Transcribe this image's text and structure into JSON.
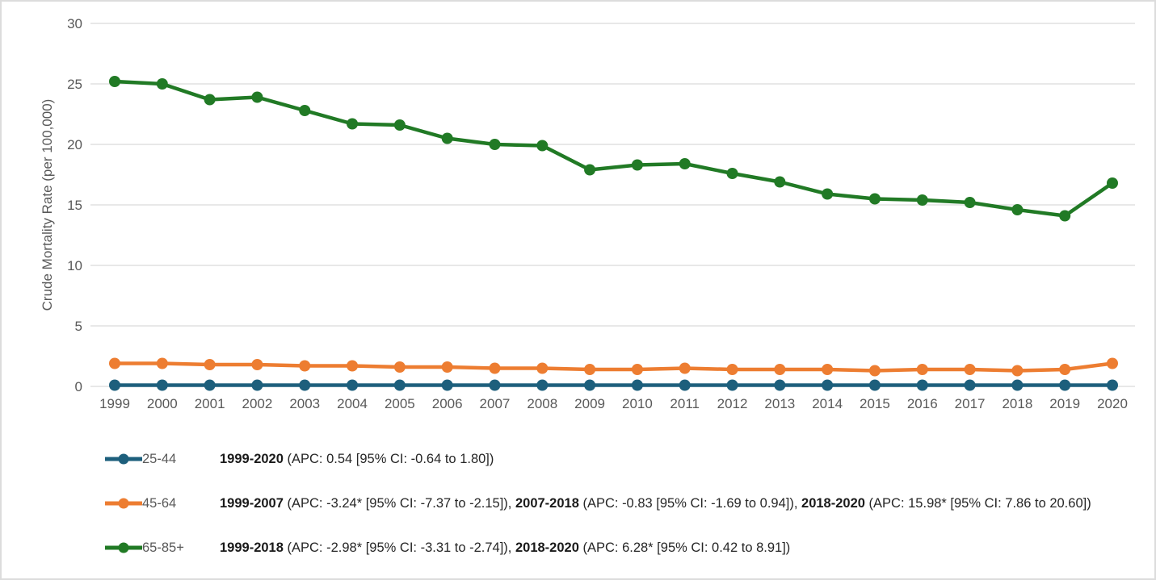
{
  "chart_data": {
    "type": "line",
    "title": "",
    "xlabel": "",
    "ylabel": "Crude Mortality Rate (per 100,000)",
    "ylim": [
      0,
      30
    ],
    "yticks": [
      0,
      5,
      10,
      15,
      20,
      25,
      30
    ],
    "grid": "horizontal-only",
    "legend_position": "bottom-left",
    "x": [
      1999,
      2000,
      2001,
      2002,
      2003,
      2004,
      2005,
      2006,
      2007,
      2008,
      2009,
      2010,
      2011,
      2012,
      2013,
      2014,
      2015,
      2016,
      2017,
      2018,
      2019,
      2020
    ],
    "series": [
      {
        "name": "25-44",
        "color": "#1D5F7C",
        "values": [
          0.1,
          0.1,
          0.1,
          0.1,
          0.1,
          0.1,
          0.1,
          0.1,
          0.1,
          0.1,
          0.1,
          0.1,
          0.1,
          0.1,
          0.1,
          0.1,
          0.1,
          0.1,
          0.1,
          0.1,
          0.1,
          0.1
        ]
      },
      {
        "name": "45-64",
        "color": "#ED7D31",
        "values": [
          1.9,
          1.9,
          1.8,
          1.8,
          1.7,
          1.7,
          1.6,
          1.6,
          1.5,
          1.5,
          1.4,
          1.4,
          1.5,
          1.4,
          1.4,
          1.4,
          1.3,
          1.4,
          1.4,
          1.3,
          1.4,
          1.9
        ]
      },
      {
        "name": "65-85+",
        "color": "#217A25",
        "values": [
          25.2,
          25.0,
          23.7,
          23.9,
          22.8,
          21.7,
          21.6,
          20.5,
          20.0,
          19.9,
          17.9,
          18.3,
          18.4,
          17.6,
          16.9,
          15.9,
          15.5,
          15.4,
          15.2,
          14.6,
          14.1,
          16.8
        ]
      }
    ]
  },
  "legend": {
    "rows": [
      {
        "label": "25-44",
        "color": "#1D5F7C",
        "segments": [
          {
            "text": "1999-2020",
            "bold": true
          },
          {
            "text": " (APC: 0.54 [95% CI: -0.64 to 1.80])",
            "bold": false
          }
        ]
      },
      {
        "label": "45-64",
        "color": "#ED7D31",
        "segments": [
          {
            "text": "1999-2007",
            "bold": true
          },
          {
            "text": " (APC: -3.24* [95% CI: -7.37 to -2.15]), ",
            "bold": false
          },
          {
            "text": "2007-2018",
            "bold": true
          },
          {
            "text": " (APC: -0.83 [95% CI: -1.69 to 0.94]), ",
            "bold": false
          },
          {
            "text": "2018-2020",
            "bold": true
          },
          {
            "text": " (APC: 15.98* [95% CI: 7.86 to 20.60])",
            "bold": false
          }
        ]
      },
      {
        "label": "65-85+",
        "color": "#217A25",
        "segments": [
          {
            "text": "1999-2018",
            "bold": true
          },
          {
            "text": " (APC: -2.98* [95% CI: -3.31 to -2.74]), ",
            "bold": false
          },
          {
            "text": "2018-2020",
            "bold": true
          },
          {
            "text": " (APC: 6.28* [95% CI: 0.42 to 8.91])",
            "bold": false
          }
        ]
      }
    ]
  },
  "colors": {
    "gridline": "#D9D9D9",
    "axis_text": "#595959",
    "annotation_text": "#262626",
    "background": "#FFFFFF",
    "frame_border": "#DCDCDC"
  }
}
